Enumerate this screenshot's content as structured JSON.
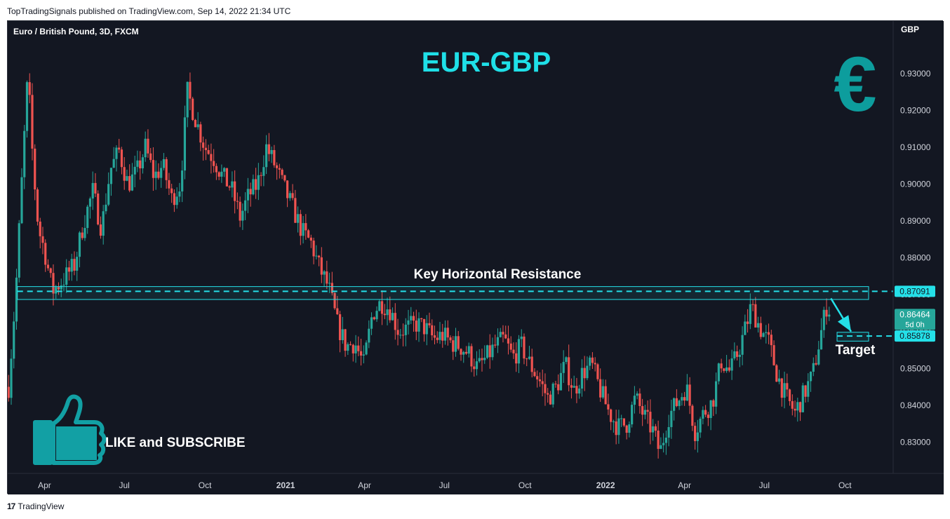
{
  "publish_header": "TopTradingSignals published on TradingView.com, Sep 14, 2022 21:34 UTC",
  "footer": {
    "logo_glyph": "17",
    "brand": "TradingView"
  },
  "chart_data": {
    "type": "candlestick",
    "symbol_label": "Euro / British Pound, 3D, FXCM",
    "title": "EUR-GBP",
    "currency": "GBP",
    "y_ticks": [
      "0.93000",
      "0.92000",
      "0.91000",
      "0.90000",
      "0.89000",
      "0.88000",
      "0.87000",
      "0.86000",
      "0.85000",
      "0.84000",
      "0.83000"
    ],
    "y_tick_values": [
      0.93,
      0.92,
      0.91,
      0.9,
      0.89,
      0.88,
      0.87,
      0.86,
      0.85,
      0.84,
      0.83
    ],
    "ylim": [
      0.8215,
      0.9395
    ],
    "x_ticks": [
      {
        "label": "Apr",
        "date": "2020-04-01",
        "bold": false
      },
      {
        "label": "Jul",
        "date": "2020-07-01",
        "bold": false
      },
      {
        "label": "Oct",
        "date": "2020-10-01",
        "bold": false
      },
      {
        "label": "2021",
        "date": "2021-01-01",
        "bold": true
      },
      {
        "label": "Apr",
        "date": "2021-04-01",
        "bold": false
      },
      {
        "label": "Jul",
        "date": "2021-07-01",
        "bold": false
      },
      {
        "label": "Oct",
        "date": "2021-10-01",
        "bold": false
      },
      {
        "label": "2022",
        "date": "2022-01-01",
        "bold": true
      },
      {
        "label": "Apr",
        "date": "2022-04-01",
        "bold": false
      },
      {
        "label": "Jul",
        "date": "2022-07-01",
        "bold": false
      },
      {
        "label": "Oct",
        "date": "2022-10-01",
        "bold": false
      }
    ],
    "x_range": [
      "2020-02-19",
      "2022-11-25"
    ],
    "candle_interval_days": 3,
    "bullish_color": "#26a69a",
    "bearish_color": "#ef5350",
    "close_path": [
      {
        "date": "2020-02-20",
        "close": 0.845
      },
      {
        "date": "2020-02-28",
        "close": 0.87
      },
      {
        "date": "2020-03-07",
        "close": 0.905
      },
      {
        "date": "2020-03-13",
        "close": 0.93
      },
      {
        "date": "2020-03-19",
        "close": 0.905
      },
      {
        "date": "2020-03-25",
        "close": 0.888
      },
      {
        "date": "2020-04-01",
        "close": 0.882
      },
      {
        "date": "2020-04-10",
        "close": 0.871
      },
      {
        "date": "2020-04-22",
        "close": 0.874
      },
      {
        "date": "2020-05-05",
        "close": 0.878
      },
      {
        "date": "2020-05-15",
        "close": 0.889
      },
      {
        "date": "2020-05-26",
        "close": 0.898
      },
      {
        "date": "2020-06-05",
        "close": 0.888
      },
      {
        "date": "2020-06-15",
        "close": 0.904
      },
      {
        "date": "2020-06-25",
        "close": 0.909
      },
      {
        "date": "2020-07-05",
        "close": 0.9
      },
      {
        "date": "2020-07-15",
        "close": 0.903
      },
      {
        "date": "2020-07-25",
        "close": 0.91
      },
      {
        "date": "2020-08-04",
        "close": 0.902
      },
      {
        "date": "2020-08-14",
        "close": 0.905
      },
      {
        "date": "2020-08-24",
        "close": 0.896
      },
      {
        "date": "2020-09-03",
        "close": 0.9
      },
      {
        "date": "2020-09-11",
        "close": 0.925
      },
      {
        "date": "2020-09-21",
        "close": 0.917
      },
      {
        "date": "2020-10-01",
        "close": 0.91
      },
      {
        "date": "2020-10-11",
        "close": 0.907
      },
      {
        "date": "2020-10-21",
        "close": 0.902
      },
      {
        "date": "2020-10-31",
        "close": 0.899
      },
      {
        "date": "2020-11-10",
        "close": 0.891
      },
      {
        "date": "2020-11-20",
        "close": 0.897
      },
      {
        "date": "2020-11-30",
        "close": 0.9
      },
      {
        "date": "2020-12-10",
        "close": 0.91
      },
      {
        "date": "2020-12-20",
        "close": 0.905
      },
      {
        "date": "2020-12-30",
        "close": 0.899
      },
      {
        "date": "2021-01-10",
        "close": 0.893
      },
      {
        "date": "2021-01-20",
        "close": 0.887
      },
      {
        "date": "2021-01-30",
        "close": 0.884
      },
      {
        "date": "2021-02-09",
        "close": 0.877
      },
      {
        "date": "2021-02-19",
        "close": 0.872
      },
      {
        "date": "2021-03-01",
        "close": 0.862
      },
      {
        "date": "2021-03-11",
        "close": 0.856
      },
      {
        "date": "2021-03-21",
        "close": 0.857
      },
      {
        "date": "2021-03-31",
        "close": 0.851
      },
      {
        "date": "2021-04-10",
        "close": 0.865
      },
      {
        "date": "2021-04-20",
        "close": 0.868
      },
      {
        "date": "2021-04-30",
        "close": 0.866
      },
      {
        "date": "2021-05-10",
        "close": 0.86
      },
      {
        "date": "2021-05-20",
        "close": 0.861
      },
      {
        "date": "2021-05-30",
        "close": 0.862
      },
      {
        "date": "2021-06-09",
        "close": 0.861
      },
      {
        "date": "2021-06-19",
        "close": 0.858
      },
      {
        "date": "2021-06-29",
        "close": 0.859
      },
      {
        "date": "2021-07-09",
        "close": 0.857
      },
      {
        "date": "2021-07-19",
        "close": 0.856
      },
      {
        "date": "2021-07-29",
        "close": 0.854
      },
      {
        "date": "2021-08-08",
        "close": 0.85
      },
      {
        "date": "2021-08-18",
        "close": 0.853
      },
      {
        "date": "2021-08-28",
        "close": 0.856
      },
      {
        "date": "2021-09-07",
        "close": 0.858
      },
      {
        "date": "2021-09-17",
        "close": 0.853
      },
      {
        "date": "2021-09-27",
        "close": 0.856
      },
      {
        "date": "2021-10-07",
        "close": 0.851
      },
      {
        "date": "2021-10-17",
        "close": 0.847
      },
      {
        "date": "2021-10-27",
        "close": 0.842
      },
      {
        "date": "2021-11-06",
        "close": 0.845
      },
      {
        "date": "2021-11-16",
        "close": 0.851
      },
      {
        "date": "2021-11-26",
        "close": 0.844
      },
      {
        "date": "2021-12-06",
        "close": 0.849
      },
      {
        "date": "2021-12-16",
        "close": 0.851
      },
      {
        "date": "2021-12-26",
        "close": 0.844
      },
      {
        "date": "2022-01-05",
        "close": 0.838
      },
      {
        "date": "2022-01-15",
        "close": 0.834
      },
      {
        "date": "2022-01-25",
        "close": 0.835
      },
      {
        "date": "2022-02-04",
        "close": 0.842
      },
      {
        "date": "2022-02-14",
        "close": 0.837
      },
      {
        "date": "2022-02-24",
        "close": 0.833
      },
      {
        "date": "2022-03-04",
        "close": 0.827
      },
      {
        "date": "2022-03-14",
        "close": 0.837
      },
      {
        "date": "2022-03-24",
        "close": 0.841
      },
      {
        "date": "2022-04-03",
        "close": 0.845
      },
      {
        "date": "2022-04-13",
        "close": 0.833
      },
      {
        "date": "2022-04-23",
        "close": 0.838
      },
      {
        "date": "2022-05-03",
        "close": 0.841
      },
      {
        "date": "2022-05-13",
        "close": 0.852
      },
      {
        "date": "2022-05-23",
        "close": 0.849
      },
      {
        "date": "2022-06-02",
        "close": 0.855
      },
      {
        "date": "2022-06-12",
        "close": 0.863
      },
      {
        "date": "2022-06-16",
        "close": 0.867
      },
      {
        "date": "2022-06-26",
        "close": 0.861
      },
      {
        "date": "2022-07-06",
        "close": 0.857
      },
      {
        "date": "2022-07-16",
        "close": 0.848
      },
      {
        "date": "2022-07-26",
        "close": 0.842
      },
      {
        "date": "2022-08-05",
        "close": 0.838
      },
      {
        "date": "2022-08-15",
        "close": 0.843
      },
      {
        "date": "2022-08-25",
        "close": 0.848
      },
      {
        "date": "2022-09-04",
        "close": 0.86
      },
      {
        "date": "2022-09-11",
        "close": 0.868
      },
      {
        "date": "2022-09-14",
        "close": 0.8646
      }
    ],
    "resistance": {
      "label": "Key Horizontal Resistance",
      "value": 0.87091,
      "price_label": "0.87091",
      "zone": [
        0.8687,
        0.8722
      ],
      "x_start": "2020-03-01",
      "x_end": "2022-10-28"
    },
    "target": {
      "label": "Target",
      "value": 0.85878,
      "price_label": "0.85878",
      "zone": [
        0.8574,
        0.8598
      ],
      "x_start": "2022-09-22",
      "x_end": "2022-10-28"
    },
    "current_price": {
      "value": 0.86464,
      "label": "0.86464",
      "countdown": "5d 0h"
    },
    "projection_arrow": {
      "from": {
        "date": "2022-09-15",
        "value": 0.869
      },
      "to": {
        "date": "2022-10-08",
        "value": 0.86
      }
    },
    "annotation_color": "#24e0e8"
  },
  "overlays": {
    "euro_sign": "€",
    "euro_color": "#0d9d9d",
    "cta_text": "LIKE and SUBSCRIBE",
    "thumb_color": "#12a0a4",
    "thumb_icon": "thumbs-up-icon"
  }
}
